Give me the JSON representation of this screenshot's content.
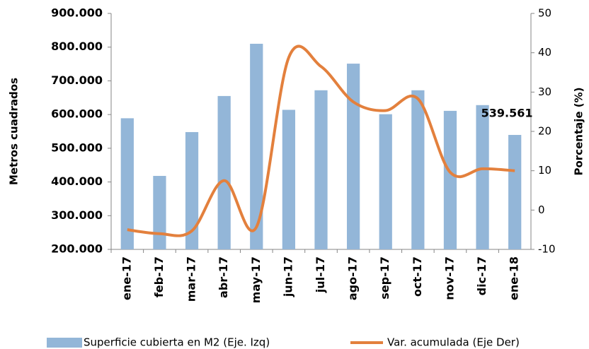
{
  "chart_data": {
    "type": "bar_line",
    "categories": [
      "ene-17",
      "feb-17",
      "mar-17",
      "abr-17",
      "may-17",
      "jun-17",
      "jul-17",
      "ago-17",
      "sep-17",
      "oct-17",
      "nov-17",
      "dic-17",
      "ene-18"
    ],
    "series": [
      {
        "name": "Superficie cubierta en M2 (Eje. Izq)",
        "type": "bar",
        "axis": "y",
        "color": "#93b6d8",
        "values": [
          589000,
          418000,
          548000,
          655000,
          810000,
          614000,
          672000,
          751000,
          601000,
          672000,
          611000,
          628000,
          539561
        ],
        "value_labels": [
          null,
          null,
          null,
          null,
          null,
          null,
          null,
          null,
          null,
          null,
          null,
          null,
          "539.561"
        ]
      },
      {
        "name": "Var. acumulada (Eje Der)",
        "type": "line",
        "axis": "y2",
        "color": "#e3803d",
        "values": [
          -5,
          -6,
          -5.3,
          7.5,
          -4.3,
          38.8,
          36.5,
          27.5,
          25.3,
          28.3,
          9.6,
          10.5,
          10
        ]
      }
    ],
    "ylabel": "Metros cuadrados",
    "y2label": "Porcentaje (%)",
    "ylim": [
      200000,
      900000
    ],
    "yticks": [
      {
        "value": 200000,
        "label": "200.000"
      },
      {
        "value": 300000,
        "label": "300.000"
      },
      {
        "value": 400000,
        "label": "400.000"
      },
      {
        "value": 500000,
        "label": "500.000"
      },
      {
        "value": 600000,
        "label": "600.000"
      },
      {
        "value": 700000,
        "label": "700.000"
      },
      {
        "value": 800000,
        "label": "800.000"
      },
      {
        "value": 900000,
        "label": "900.000"
      }
    ],
    "y2lim": [
      -10,
      50
    ],
    "y2ticks": [
      -10,
      0,
      10,
      20,
      30,
      40,
      50
    ],
    "grid": false,
    "legend": "bottom"
  }
}
